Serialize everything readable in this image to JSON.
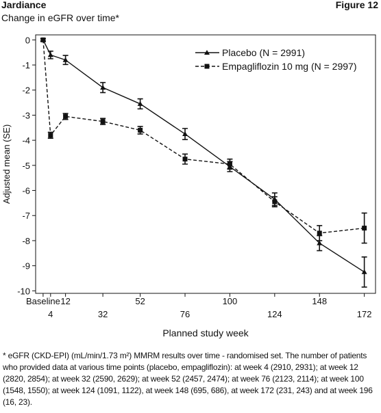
{
  "chart_data": {
    "type": "line",
    "header": "Jardiance",
    "figure_label": "Figure 12",
    "title": "Change in eGFR over time*",
    "x_label": "Planned study week",
    "y_label": "Adjusted mean (SE)",
    "x": [
      0,
      4,
      12,
      32,
      52,
      76,
      100,
      124,
      148,
      172
    ],
    "xlim": [
      -4,
      178
    ],
    "xticks": [
      {
        "value": 0,
        "label": "Baseline"
      },
      4,
      12,
      32,
      52,
      76,
      100,
      124,
      148,
      172
    ],
    "ylim": [
      -10.1,
      0.2
    ],
    "yticks": [
      0,
      -1,
      -2,
      -3,
      -4,
      -5,
      -6,
      -7,
      -8,
      -9,
      -10
    ],
    "legend": "upper right",
    "series": [
      {
        "name": "Placebo (N = 2991)",
        "color": "#111111",
        "marker": "triangle",
        "dash": false,
        "values": [
          0,
          -0.6,
          -0.8,
          -1.9,
          -2.55,
          -3.75,
          -5.05,
          -6.35,
          -8.1,
          -9.25
        ],
        "errors": [
          0.05,
          0.15,
          0.18,
          0.2,
          0.2,
          0.22,
          0.2,
          0.25,
          0.3,
          0.6
        ]
      },
      {
        "name": "Empagliflozin 10 mg (N = 2997)",
        "color": "#111111",
        "marker": "square",
        "dash": true,
        "values": [
          0,
          -3.8,
          -3.05,
          -3.25,
          -3.6,
          -4.75,
          -4.95,
          -6.45,
          -7.7,
          -7.5
        ],
        "errors": [
          0.05,
          0.12,
          0.12,
          0.12,
          0.15,
          0.2,
          0.2,
          0.2,
          0.3,
          0.6
        ]
      }
    ],
    "footnote": "* eGFR (CKD-EPI) (mL/min/1.73 m²) MMRM results over time - randomised set. The number of patients who provided data at various time points (placebo, empagliflozin): at week 4 (2910, 2931); at week 12 (2820, 2854); at week 32 (2590, 2629); at week 52 (2457, 2474); at week 76 (2123, 2114); at week 100 (1548, 1550); at week 124 (1091, 1122), at week 148 (695, 686), at week 172 (231, 243) and at week 196 (16, 23)."
  }
}
